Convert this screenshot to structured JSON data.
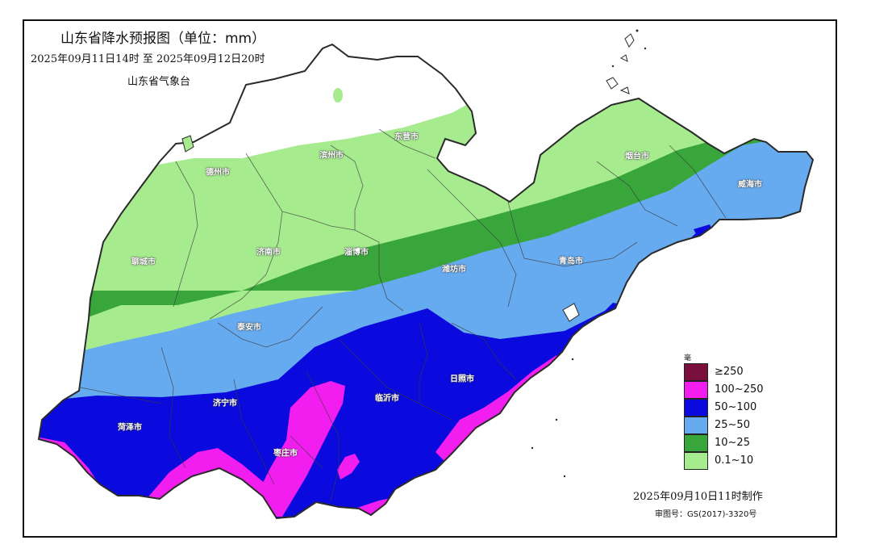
{
  "header": {
    "title": "山东省降水预报图（单位：mm）",
    "period": "2025年09月11日14时  至  2025年09月12日20时",
    "issuer": "山东省气象台"
  },
  "footer": {
    "made": "2025年09月10日11时制作",
    "review": "审图号：GS(2017)-3320号"
  },
  "legend": {
    "unit": "毫米",
    "items": [
      {
        "label": "≥250",
        "color": "#7a0f3e"
      },
      {
        "label": "100~250",
        "color": "#f21ef0"
      },
      {
        "label": "50~100",
        "color": "#0a0adf"
      },
      {
        "label": "25~50",
        "color": "#66aaf0"
      },
      {
        "label": "10~25",
        "color": "#38a63a"
      },
      {
        "label": "0.1~10",
        "color": "#a6ec8e"
      }
    ]
  },
  "cities": {
    "dezhou": "德州市",
    "binzhou": "滨州市",
    "dongying": "东营市",
    "yantai": "烟台市",
    "weihai": "威海市",
    "liaocheng": "聊城市",
    "jinan": "济南市",
    "zibo": "淄博市",
    "weifang": "潍坊市",
    "qingdao": "青岛市",
    "taian": "泰安市",
    "rizhao": "日照市",
    "jining": "济宁市",
    "linyi": "临沂市",
    "heze": "菏泽市",
    "zaozhuang": "枣庄市"
  }
}
